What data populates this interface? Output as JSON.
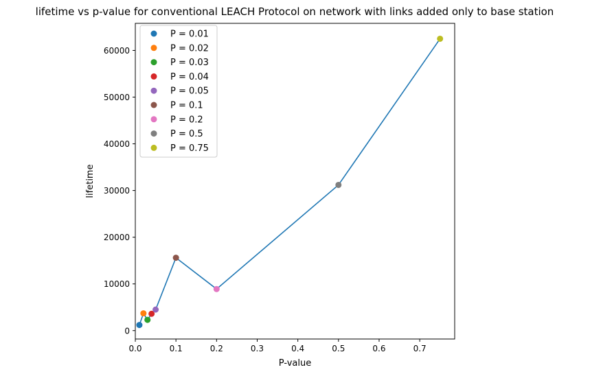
{
  "chart_data": {
    "type": "scatter",
    "title": "lifetime vs p-value for conventional LEACH Protocol on network with links added only to base station",
    "xlabel": "P-value",
    "ylabel": "lifetime",
    "xlim": [
      0.0,
      0.786
    ],
    "ylim": [
      -1800,
      65800
    ],
    "x_ticks": [
      0.0,
      0.1,
      0.2,
      0.3,
      0.4,
      0.5,
      0.6,
      0.7
    ],
    "x_tick_labels": [
      "0.0",
      "0.1",
      "0.2",
      "0.3",
      "0.4",
      "0.5",
      "0.6",
      "0.7"
    ],
    "y_ticks": [
      0,
      10000,
      20000,
      30000,
      40000,
      50000,
      60000
    ],
    "y_tick_labels": [
      "0",
      "10000",
      "20000",
      "30000",
      "40000",
      "50000",
      "60000"
    ],
    "grid": false,
    "legend_position": "top-left",
    "line": {
      "color": "#1f77b4"
    },
    "series": [
      {
        "name": "P = 0.01",
        "x": 0.01,
        "y": 1200,
        "color": "#1f77b4"
      },
      {
        "name": "P = 0.02",
        "x": 0.02,
        "y": 3700,
        "color": "#ff7f0e"
      },
      {
        "name": "P = 0.03",
        "x": 0.03,
        "y": 2300,
        "color": "#2ca02c"
      },
      {
        "name": "P = 0.04",
        "x": 0.04,
        "y": 3600,
        "color": "#d62728"
      },
      {
        "name": "P = 0.05",
        "x": 0.05,
        "y": 4500,
        "color": "#9467bd"
      },
      {
        "name": "P = 0.1",
        "x": 0.1,
        "y": 15600,
        "color": "#8c564b"
      },
      {
        "name": "P = 0.2",
        "x": 0.2,
        "y": 8900,
        "color": "#e377c2"
      },
      {
        "name": "P = 0.5",
        "x": 0.5,
        "y": 31200,
        "color": "#7f7f7f"
      },
      {
        "name": "P = 0.75",
        "x": 0.75,
        "y": 62500,
        "color": "#bcbd22"
      }
    ]
  }
}
